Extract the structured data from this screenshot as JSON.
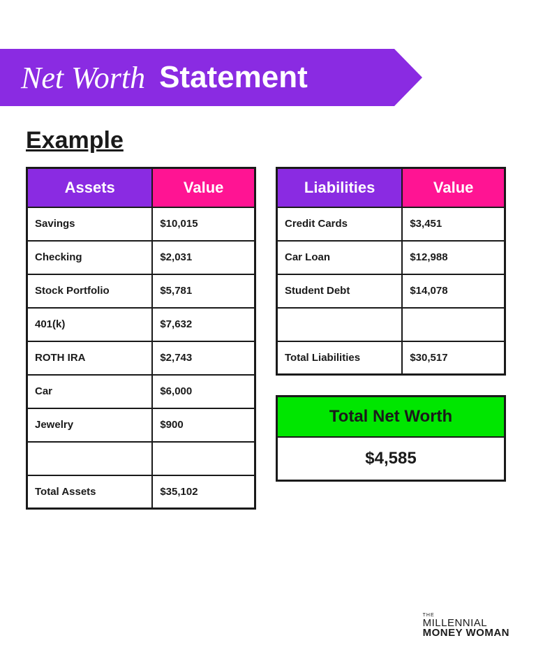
{
  "header": {
    "script_text": "Net Worth",
    "bold_text": "Statement",
    "banner_color": "#8a2be2"
  },
  "example_label": "Example",
  "colors": {
    "purple": "#8a2be2",
    "pink": "#ff1493",
    "green": "#00e600",
    "border": "#1a1a1a",
    "background": "#ffffff"
  },
  "assets_table": {
    "headers": [
      "Assets",
      "Value"
    ],
    "header_colors": [
      "#8a2be2",
      "#ff1493"
    ],
    "rows": [
      [
        "Savings",
        "$10,015"
      ],
      [
        "Checking",
        "$2,031"
      ],
      [
        "Stock Portfolio",
        "$5,781"
      ],
      [
        "401(k)",
        "$7,632"
      ],
      [
        "ROTH IRA",
        "$2,743"
      ],
      [
        "Car",
        "$6,000"
      ],
      [
        "Jewelry",
        "$900"
      ],
      [
        "",
        ""
      ],
      [
        "Total Assets",
        "$35,102"
      ]
    ]
  },
  "liabilities_table": {
    "headers": [
      "Liabilities",
      "Value"
    ],
    "header_colors": [
      "#8a2be2",
      "#ff1493"
    ],
    "rows": [
      [
        "Credit Cards",
        "$3,451"
      ],
      [
        "Car Loan",
        "$12,988"
      ],
      [
        "Student Debt",
        "$14,078"
      ],
      [
        "",
        ""
      ],
      [
        "Total Liabilities",
        "$30,517"
      ]
    ]
  },
  "net_worth": {
    "title": "Total Net Worth",
    "value": "$4,585",
    "title_bg": "#00e600"
  },
  "brand": {
    "line1": "THE",
    "line2": "MILLENNIAL",
    "line3": "MONEY WOMAN"
  }
}
